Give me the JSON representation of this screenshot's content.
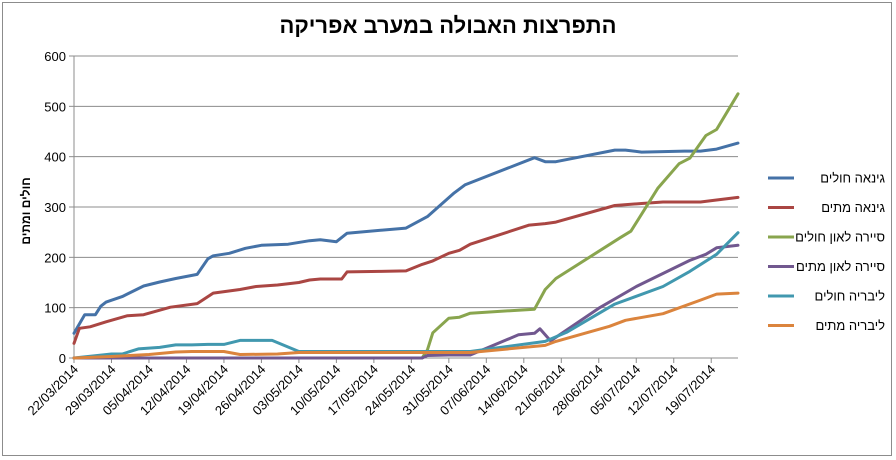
{
  "chart_data": {
    "type": "line",
    "title": "התפרצות האבולה במערב אפריקה",
    "ylabel": "חולים ומתים",
    "xlabel": "",
    "ylim": [
      0,
      600
    ],
    "yticks": [
      0,
      100,
      200,
      300,
      400,
      500,
      600
    ],
    "xticks": [
      "22/03/2014",
      "29/03/2014",
      "05/04/2014",
      "12/04/2014",
      "19/04/2014",
      "26/04/2014",
      "03/05/2014",
      "10/05/2014",
      "17/05/2014",
      "24/05/2014",
      "31/05/2014",
      "07/06/2014",
      "14/06/2014",
      "21/06/2014",
      "28/06/2014",
      "05/07/2014",
      "12/07/2014",
      "19/07/2014"
    ],
    "x_start": "22/03/2014",
    "x_end": "24/07/2014",
    "legend_position": "right",
    "grid": true,
    "series": [
      {
        "name": "גינאה חולים",
        "color": "#4572a7",
        "points": [
          [
            "22/03/2014",
            49
          ],
          [
            "24/03/2014",
            86
          ],
          [
            "26/03/2014",
            86
          ],
          [
            "27/03/2014",
            103
          ],
          [
            "28/03/2014",
            111
          ],
          [
            "31/03/2014",
            122
          ],
          [
            "04/04/2014",
            143
          ],
          [
            "07/04/2014",
            151
          ],
          [
            "10/04/2014",
            158
          ],
          [
            "14/04/2014",
            166
          ],
          [
            "16/04/2014",
            197
          ],
          [
            "17/04/2014",
            203
          ],
          [
            "20/04/2014",
            208
          ],
          [
            "23/04/2014",
            218
          ],
          [
            "26/04/2014",
            224
          ],
          [
            "01/05/2014",
            226
          ],
          [
            "05/05/2014",
            233
          ],
          [
            "07/05/2014",
            235
          ],
          [
            "10/05/2014",
            231
          ],
          [
            "12/05/2014",
            248
          ],
          [
            "23/05/2014",
            258
          ],
          [
            "27/05/2014",
            281
          ],
          [
            "01/06/2014",
            328
          ],
          [
            "03/06/2014",
            344
          ],
          [
            "16/06/2014",
            398
          ],
          [
            "18/06/2014",
            390
          ],
          [
            "20/06/2014",
            390
          ],
          [
            "01/07/2014",
            413
          ],
          [
            "03/07/2014",
            413
          ],
          [
            "06/07/2014",
            409
          ],
          [
            "10/07/2014",
            410
          ],
          [
            "14/07/2014",
            411
          ],
          [
            "17/07/2014",
            411
          ],
          [
            "20/07/2014",
            415
          ],
          [
            "24/07/2014",
            427
          ]
        ]
      },
      {
        "name": "גינאה מתים",
        "color": "#aa4643",
        "points": [
          [
            "22/03/2014",
            29
          ],
          [
            "23/03/2014",
            59
          ],
          [
            "25/03/2014",
            62
          ],
          [
            "28/03/2014",
            72
          ],
          [
            "01/04/2014",
            84
          ],
          [
            "04/04/2014",
            86
          ],
          [
            "07/04/2014",
            95
          ],
          [
            "09/04/2014",
            101
          ],
          [
            "14/04/2014",
            108
          ],
          [
            "17/04/2014",
            129
          ],
          [
            "22/04/2014",
            136
          ],
          [
            "25/04/2014",
            142
          ],
          [
            "29/04/2014",
            145
          ],
          [
            "03/05/2014",
            150
          ],
          [
            "05/05/2014",
            155
          ],
          [
            "07/05/2014",
            157
          ],
          [
            "11/05/2014",
            157
          ],
          [
            "12/05/2014",
            171
          ],
          [
            "18/05/2014",
            172
          ],
          [
            "23/05/2014",
            173
          ],
          [
            "26/05/2014",
            186
          ],
          [
            "28/05/2014",
            193
          ],
          [
            "31/05/2014",
            208
          ],
          [
            "02/06/2014",
            214
          ],
          [
            "04/06/2014",
            226
          ],
          [
            "15/06/2014",
            264
          ],
          [
            "18/06/2014",
            267
          ],
          [
            "20/06/2014",
            270
          ],
          [
            "01/07/2014",
            303
          ],
          [
            "06/07/2014",
            307
          ],
          [
            "10/07/2014",
            310
          ],
          [
            "17/07/2014",
            310
          ],
          [
            "20/07/2014",
            314
          ],
          [
            "24/07/2014",
            319
          ]
        ]
      },
      {
        "name": "סיירה לאון חולים",
        "color": "#89a54e",
        "points": [
          [
            "22/03/2014",
            0
          ],
          [
            "26/05/2014",
            0
          ],
          [
            "27/05/2014",
            16
          ],
          [
            "28/05/2014",
            50
          ],
          [
            "31/05/2014",
            79
          ],
          [
            "02/06/2014",
            81
          ],
          [
            "04/06/2014",
            89
          ],
          [
            "16/06/2014",
            97
          ],
          [
            "18/06/2014",
            136
          ],
          [
            "20/06/2014",
            158
          ],
          [
            "02/07/2014",
            239
          ],
          [
            "04/07/2014",
            252
          ],
          [
            "09/07/2014",
            337
          ],
          [
            "13/07/2014",
            386
          ],
          [
            "15/07/2014",
            397
          ],
          [
            "18/07/2014",
            442
          ],
          [
            "20/07/2014",
            454
          ],
          [
            "24/07/2014",
            525
          ]
        ]
      },
      {
        "name": "סיירה לאון מתים",
        "color": "#71588f",
        "points": [
          [
            "22/03/2014",
            0
          ],
          [
            "26/05/2014",
            0
          ],
          [
            "27/05/2014",
            5
          ],
          [
            "31/05/2014",
            6
          ],
          [
            "04/06/2014",
            6
          ],
          [
            "13/06/2014",
            46
          ],
          [
            "16/06/2014",
            49
          ],
          [
            "17/06/2014",
            58
          ],
          [
            "19/06/2014",
            34
          ],
          [
            "28/06/2014",
            99
          ],
          [
            "05/07/2014",
            142
          ],
          [
            "15/07/2014",
            194
          ],
          [
            "18/07/2014",
            206
          ],
          [
            "20/07/2014",
            219
          ],
          [
            "24/07/2014",
            224
          ]
        ]
      },
      {
        "name": "ליבריה חולים",
        "color": "#4198af",
        "points": [
          [
            "22/03/2014",
            0
          ],
          [
            "29/03/2014",
            8
          ],
          [
            "31/03/2014",
            8
          ],
          [
            "03/04/2014",
            18
          ],
          [
            "07/04/2014",
            21
          ],
          [
            "10/04/2014",
            26
          ],
          [
            "13/04/2014",
            26
          ],
          [
            "16/04/2014",
            27
          ],
          [
            "19/04/2014",
            27
          ],
          [
            "22/04/2014",
            35
          ],
          [
            "28/04/2014",
            35
          ],
          [
            "03/05/2014",
            13
          ],
          [
            "04/06/2014",
            13
          ],
          [
            "18/06/2014",
            33
          ],
          [
            "22/06/2014",
            51
          ],
          [
            "01/07/2014",
            107
          ],
          [
            "10/07/2014",
            142
          ],
          [
            "15/07/2014",
            172
          ],
          [
            "20/07/2014",
            206
          ],
          [
            "24/07/2014",
            249
          ]
        ]
      },
      {
        "name": "ליבריה מתים",
        "color": "#db843d",
        "points": [
          [
            "22/03/2014",
            0
          ],
          [
            "29/03/2014",
            3
          ],
          [
            "05/04/2014",
            7
          ],
          [
            "10/04/2014",
            12
          ],
          [
            "13/04/2014",
            13
          ],
          [
            "19/04/2014",
            13
          ],
          [
            "22/04/2014",
            7
          ],
          [
            "29/04/2014",
            8
          ],
          [
            "03/05/2014",
            11
          ],
          [
            "04/06/2014",
            11
          ],
          [
            "18/06/2014",
            25
          ],
          [
            "20/06/2014",
            33
          ],
          [
            "30/06/2014",
            63
          ],
          [
            "03/07/2014",
            75
          ],
          [
            "10/07/2014",
            88
          ],
          [
            "17/07/2014",
            115
          ],
          [
            "20/07/2014",
            127
          ],
          [
            "24/07/2014",
            129
          ]
        ]
      }
    ]
  }
}
